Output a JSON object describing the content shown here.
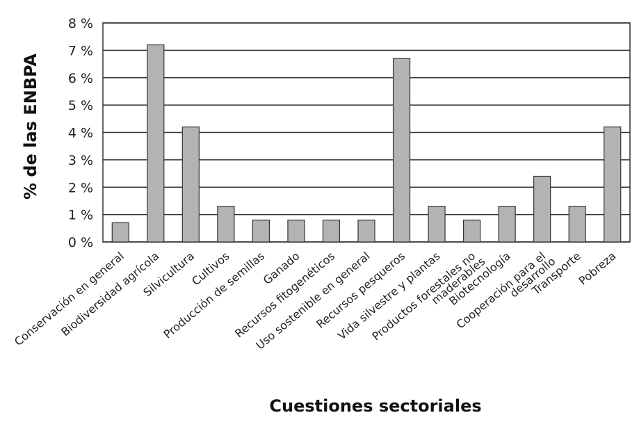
{
  "chart_data": {
    "type": "bar",
    "xlabel": "Cuestiones sectoriales",
    "ylabel": "% de las ENBPA",
    "ylim": [
      0,
      8
    ],
    "yticks": [
      {
        "value": 0,
        "label": "0 %"
      },
      {
        "value": 1,
        "label": "1 %"
      },
      {
        "value": 2,
        "label": "2 %"
      },
      {
        "value": 3,
        "label": "3 %"
      },
      {
        "value": 4,
        "label": "4 %"
      },
      {
        "value": 5,
        "label": "5 %"
      },
      {
        "value": 6,
        "label": "6 %"
      },
      {
        "value": 7,
        "label": "7 %"
      },
      {
        "value": 8,
        "label": "8 %"
      }
    ],
    "grid": true,
    "legend": "none",
    "categories": [
      [
        "Conservación en general"
      ],
      [
        "Biodiversidad agrícola"
      ],
      [
        "Silvicultura"
      ],
      [
        "Cultivos"
      ],
      [
        "Producción de semillas"
      ],
      [
        "Ganado"
      ],
      [
        "Recursos fitogenéticos"
      ],
      [
        "Uso sostenible en general"
      ],
      [
        "Recursos pesqueros"
      ],
      [
        "Vida silvestre y plantas"
      ],
      [
        "Productos forestales no",
        "maderables"
      ],
      [
        "Biotecnología"
      ],
      [
        "Cooperación para el",
        "desarrollo"
      ],
      [
        "Transporte"
      ],
      [
        "Pobreza"
      ]
    ],
    "values": [
      0.7,
      7.2,
      4.2,
      1.3,
      0.8,
      0.8,
      0.8,
      0.8,
      6.7,
      1.3,
      0.8,
      1.3,
      2.4,
      1.3,
      4.2
    ],
    "colors": {
      "bar": "#b3b3b3",
      "outline": "#333333"
    }
  }
}
